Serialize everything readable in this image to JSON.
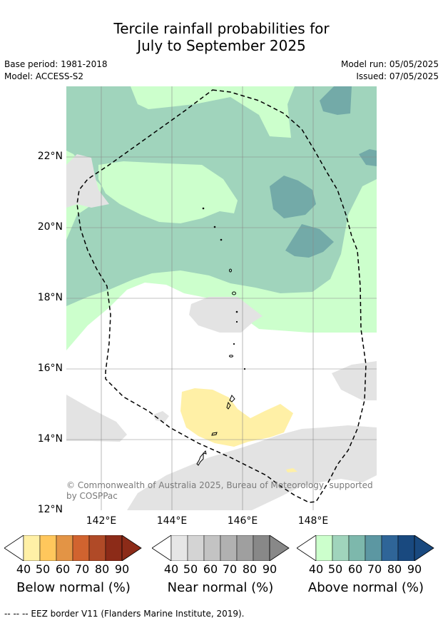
{
  "title": {
    "line1": "Tercile rainfall probabilities for",
    "line2": "July to September 2025"
  },
  "meta": {
    "base_period": "Base period: 1981-2018",
    "model": "Model: ACCESS-S2",
    "model_run": "Model run: 05/05/2025",
    "issued": "Issued: 07/05/2025"
  },
  "map": {
    "lat_ticks": [
      "22°N",
      "20°N",
      "18°N",
      "16°N",
      "14°N",
      "12°N"
    ],
    "lon_ticks": [
      "142°E",
      "144°E",
      "146°E",
      "148°E"
    ],
    "lat_range": [
      12,
      24
    ],
    "lon_range": [
      141,
      149.8
    ],
    "copyright": "© Commonwealth of Australia 2025, Bureau of Meteorology, supported by COSPPac"
  },
  "colorbars": [
    {
      "label": "Below normal (%)",
      "ticks": [
        "40",
        "50",
        "60",
        "70",
        "80",
        "90"
      ],
      "colors": [
        "#fff0a6",
        "#ffc75c",
        "#e39445",
        "#d1632f",
        "#b04a27",
        "#8c2b18"
      ]
    },
    {
      "label": "Near normal (%)",
      "ticks": [
        "40",
        "50",
        "60",
        "70",
        "80",
        "90"
      ],
      "colors": [
        "#e6e6e6",
        "#d4d4d4",
        "#c3c3c3",
        "#b1b1b1",
        "#9f9f9f",
        "#888888"
      ]
    },
    {
      "label": "Above normal (%)",
      "ticks": [
        "40",
        "50",
        "60",
        "70",
        "80",
        "90"
      ],
      "colors": [
        "#ccffcc",
        "#a0d4bc",
        "#7db8ac",
        "#5c97a2",
        "#2f6598",
        "#19497f"
      ]
    }
  ],
  "footnote": "--  --  -- EEZ border V11 (Flanders Marine Institute, 2019).",
  "colors": {
    "above_40": "#ccffcc",
    "above_50": "#a0d4bc",
    "above_60": "#73aaa8",
    "near_40": "#e3e3e3",
    "below_40": "#fff0a6"
  }
}
